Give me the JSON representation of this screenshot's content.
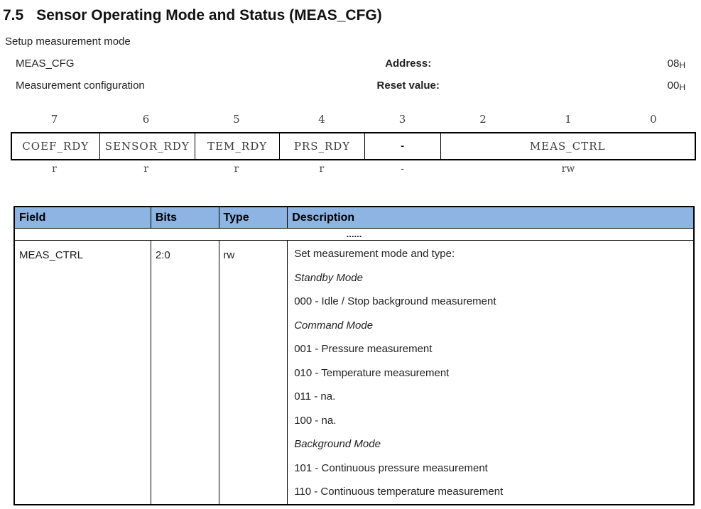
{
  "page": {
    "heading_number": "7.5",
    "heading_title": "Sensor Operating Mode and Status (MEAS_CFG)",
    "intro": "Setup measurement mode"
  },
  "register_info": {
    "rows": [
      {
        "name": "MEAS_CFG",
        "label": "Address:",
        "value": "08",
        "value_suffix": "H"
      },
      {
        "name": "Measurement configuration",
        "label": "Reset value:",
        "value": "00",
        "value_suffix": "H"
      }
    ]
  },
  "bit_diagram": {
    "bit_numbers": [
      "7",
      "6",
      "5",
      "4",
      "3",
      "2",
      "1",
      "0"
    ],
    "cells": [
      {
        "label": "COEF_RDY",
        "span": 1,
        "access": "r"
      },
      {
        "label": "SENSOR_RDY",
        "span": 1,
        "access": "r"
      },
      {
        "label": "TEM_RDY",
        "span": 1,
        "access": "r"
      },
      {
        "label": "PRS_RDY",
        "span": 1,
        "access": "r"
      },
      {
        "label": "-",
        "span": 1,
        "access": "-"
      },
      {
        "label": "MEAS_CTRL",
        "span": 3,
        "access": "rw"
      }
    ]
  },
  "field_table": {
    "headers": [
      "Field",
      "Bits",
      "Type",
      "Description"
    ],
    "ellipsis_row": "......",
    "rows": [
      {
        "field": "MEAS_CTRL",
        "bits": "2:0",
        "type": "rw",
        "description": [
          {
            "text": "Set measurement mode and type:",
            "italic": false
          },
          {
            "text": "Standby Mode",
            "italic": true
          },
          {
            "text": "000 - Idle / Stop background measurement",
            "italic": false
          },
          {
            "text": "Command Mode",
            "italic": true
          },
          {
            "text": "001 - Pressure measurement",
            "italic": false
          },
          {
            "text": "010 - Temperature measurement",
            "italic": false
          },
          {
            "text": "011 - na.",
            "italic": false
          },
          {
            "text": "100 - na.",
            "italic": false
          },
          {
            "text": "Background Mode",
            "italic": true
          },
          {
            "text": "101 - Continuous pressure measurement",
            "italic": false
          },
          {
            "text": "110 - Continuous temperature measurement",
            "italic": false
          }
        ]
      }
    ]
  },
  "colors": {
    "table_header_bg": "#8DB4E2",
    "text": "#1f1f1f",
    "bit_table_text": "#3d3d3d",
    "border": "#000000"
  }
}
